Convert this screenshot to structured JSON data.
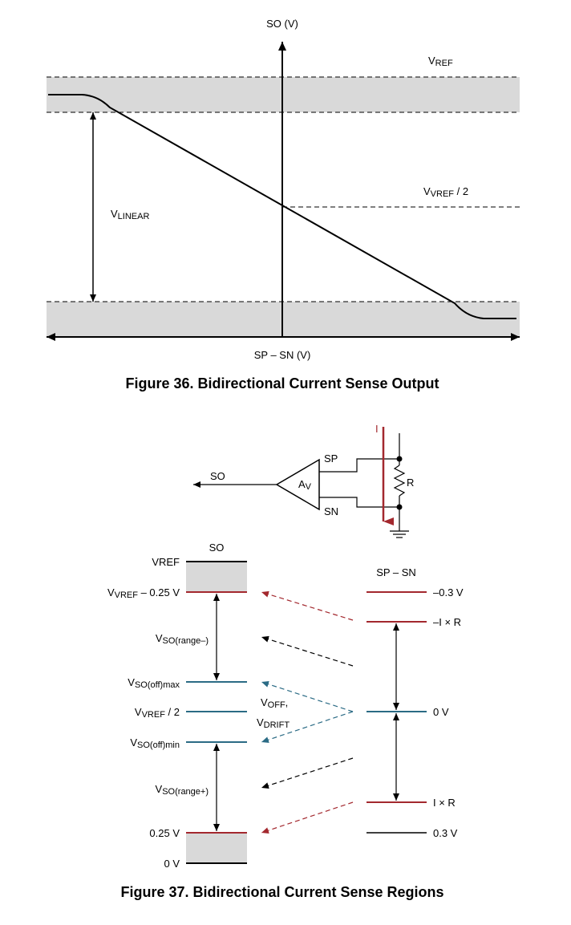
{
  "fig36": {
    "y_axis_label": "SO (V)",
    "x_axis_label": "SP – SN (V)",
    "vref_main": "V",
    "vref_sub": "REF",
    "vhalf_main": "V",
    "vhalf_sub": "VREF",
    "vhalf_suffix": " / 2",
    "vlin_main": "V",
    "vlin_sub": "LINEAR",
    "caption": "Figure 36.  Bidirectional Current Sense Output"
  },
  "circuit": {
    "current_label": "I",
    "sp_label": "SP",
    "sn_label": "SN",
    "so_label": "SO",
    "amp_main": "A",
    "amp_sub": "V",
    "res_label": "R"
  },
  "fig37": {
    "so_header": "SO",
    "spsn_header": "SP – SN",
    "left": {
      "vref": "VREF",
      "vref_minus_main": "V",
      "vref_minus_sub": "VREF",
      "vref_minus_suffix": " – 0.25 V",
      "range_neg_main": "V",
      "range_neg_sub": "SO(range–)",
      "off_max_main": "V",
      "off_max_sub": "SO(off)max",
      "half_main": "V",
      "half_sub": "VREF",
      "half_suffix": " / 2",
      "off_min_main": "V",
      "off_min_sub": "SO(off)min",
      "range_pos_main": "V",
      "range_pos_sub": "SO(range+)",
      "v025": "0.25 V",
      "v0": "0 V"
    },
    "voff_main": "V",
    "voff_sub": "OFF",
    "voff_suffix": ",",
    "vdrift_main": "V",
    "vdrift_sub": "DRIFT",
    "right": {
      "neg03": "–0.3 V",
      "neg_ir": "–I × R",
      "zero": "0 V",
      "pos_ir": "I × R",
      "pos03": "0.3 V"
    },
    "caption": "Figure 37.  Bidirectional Current Sense Regions"
  },
  "colors": {
    "red": "#a3282e",
    "teal": "#2b6b85",
    "band": "#d9d9d9"
  }
}
